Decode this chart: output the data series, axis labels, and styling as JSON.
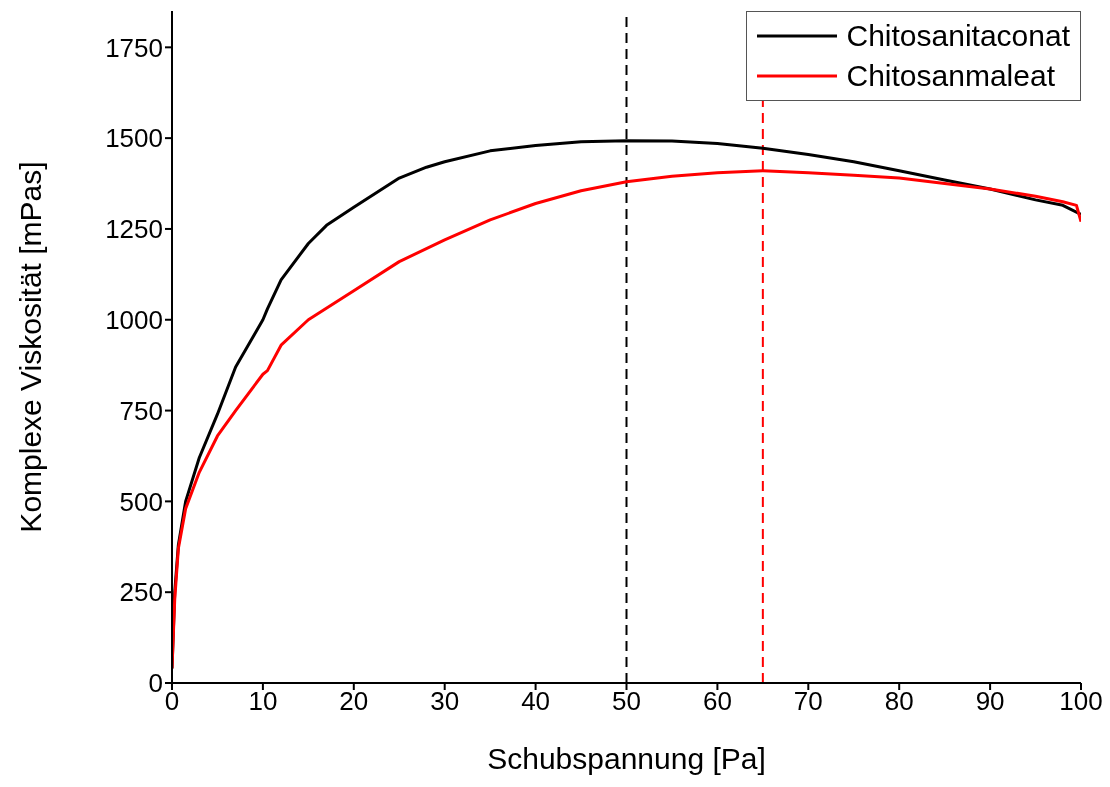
{
  "chart_data": {
    "type": "line",
    "xlabel": "Schubspannung [Pa]",
    "ylabel": "Komplexe Viskosität [mPas]",
    "xlim": [
      0,
      100
    ],
    "xticks": [
      0,
      10,
      20,
      30,
      40,
      50,
      60,
      70,
      80,
      90,
      100
    ],
    "ylim": [
      0,
      1850
    ],
    "yticks": [
      0,
      250,
      500,
      750,
      1000,
      1250,
      1500,
      1750
    ],
    "grid": false,
    "legend": "top right",
    "marker": "none",
    "line_style": "solid",
    "series": [
      {
        "name": "Chitosanitaconat",
        "color": "#000000",
        "x": [
          0,
          0.3,
          0.7,
          1.5,
          3,
          5,
          7,
          10,
          10.5,
          12,
          15,
          17,
          20,
          25,
          28,
          30,
          35,
          40,
          45,
          50,
          55,
          60,
          65,
          70,
          75,
          80,
          85,
          90,
          95,
          98,
          100
        ],
        "values": [
          40,
          250,
          380,
          500,
          620,
          740,
          870,
          1000,
          1030,
          1110,
          1210,
          1260,
          1310,
          1390,
          1420,
          1435,
          1465,
          1480,
          1490,
          1493,
          1492,
          1485,
          1472,
          1455,
          1435,
          1410,
          1385,
          1360,
          1330,
          1315,
          1290
        ]
      },
      {
        "name": "Chitosanmaleat",
        "color": "#ff0000",
        "x": [
          0,
          0.3,
          0.7,
          1.5,
          3,
          5,
          7,
          10,
          10.5,
          12,
          15,
          20,
          25,
          30,
          35,
          40,
          45,
          50,
          55,
          60,
          65,
          70,
          75,
          80,
          85,
          90,
          95,
          98,
          99.5,
          100
        ],
        "values": [
          40,
          230,
          370,
          480,
          580,
          680,
          750,
          850,
          860,
          930,
          1000,
          1080,
          1160,
          1220,
          1275,
          1320,
          1355,
          1380,
          1395,
          1405,
          1410,
          1405,
          1398,
          1390,
          1375,
          1360,
          1340,
          1325,
          1315,
          1270
        ]
      }
    ],
    "ref_lines": [
      {
        "axis": "x",
        "value": 50,
        "color": "#000000",
        "line_style": "dashed"
      },
      {
        "axis": "x",
        "value": 65,
        "color": "#ff0000",
        "line_style": "dashed"
      }
    ]
  }
}
